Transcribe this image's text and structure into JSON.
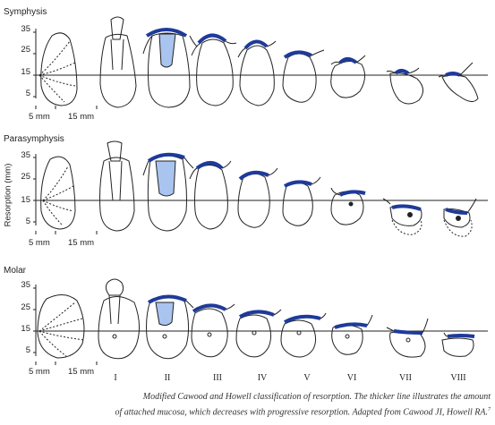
{
  "sections": [
    {
      "name": "Symphysis"
    },
    {
      "name": "Parasymphysis"
    },
    {
      "name": "Molar"
    }
  ],
  "y_ticks": [
    "35",
    "25",
    "15",
    "5"
  ],
  "y_axis_label": "Resorption (mm)",
  "scale_labels": [
    "5 mm",
    "15 mm"
  ],
  "classes": [
    "I",
    "II",
    "III",
    "IV",
    "V",
    "VI",
    "VII",
    "VIII"
  ],
  "caption": {
    "line1": "Modified Cawood and Howell classification of resorption. The thicker line illustrates the amount",
    "line2": "of attached mucosa, which decreases with progressive resorption. Adapted from Cawood JI, Howell RA.",
    "reference": "7"
  },
  "colors": {
    "mucosa": "#1e3a9a",
    "tooth_root_fill": "#a9c4ef",
    "outline": "#222222"
  }
}
